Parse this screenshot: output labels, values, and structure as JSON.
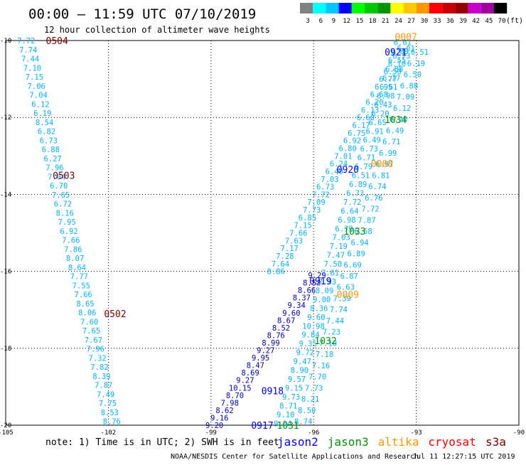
{
  "header": {
    "title": "00:00 – 11:59 UTC 07/10/2019",
    "subtitle": "12 hour collection of altimeter wave heights"
  },
  "legend": {
    "unit": "(ft)",
    "bins": [
      {
        "label": "3",
        "color": "#808080"
      },
      {
        "label": "6",
        "color": "#00ffff"
      },
      {
        "label": "9",
        "color": "#00c8ff"
      },
      {
        "label": "12",
        "color": "#0000ff"
      },
      {
        "label": "15",
        "color": "#00ff00"
      },
      {
        "label": "18",
        "color": "#00c800"
      },
      {
        "label": "21",
        "color": "#009600"
      },
      {
        "label": "24",
        "color": "#ffff00"
      },
      {
        "label": "27",
        "color": "#ffc800"
      },
      {
        "label": "30",
        "color": "#ff9600"
      },
      {
        "label": "33",
        "color": "#ff0000"
      },
      {
        "label": "36",
        "color": "#c80000"
      },
      {
        "label": "39",
        "color": "#960000"
      },
      {
        "label": "42",
        "color": "#c800c8"
      },
      {
        "label": "45",
        "color": "#a000a0"
      },
      {
        "label": "70",
        "color": "#000000"
      }
    ]
  },
  "map": {
    "lon_range": [
      -105,
      -90
    ],
    "lat_range": [
      -20,
      -10
    ],
    "lon_ticks": [
      "-105",
      "-102",
      "-99",
      "-96",
      "-93",
      "-90"
    ],
    "lat_ticks": [
      "-10",
      "-12",
      "-14",
      "-16",
      "-18",
      "-20"
    ]
  },
  "labels": [
    {
      "text": "0504",
      "lon": -103.5,
      "lat": -10.0,
      "color": "#800000"
    },
    {
      "text": "0503",
      "lon": -103.3,
      "lat": -13.5,
      "color": "#800000"
    },
    {
      "text": "0502",
      "lon": -101.8,
      "lat": -17.1,
      "color": "#800000"
    },
    {
      "text": "0007",
      "lon": -93.3,
      "lat": -9.9,
      "color": "#ff9600"
    },
    {
      "text": "0921",
      "lon": -93.6,
      "lat": -10.3,
      "color": "#0000ff"
    },
    {
      "text": "1034",
      "lon": -93.6,
      "lat": -12.05,
      "color": "#009600"
    },
    {
      "text": "0008",
      "lon": -94.0,
      "lat": -13.2,
      "color": "#ff9600"
    },
    {
      "text": "0920",
      "lon": -95.0,
      "lat": -13.35,
      "color": "#0000ff"
    },
    {
      "text": "1033",
      "lon": -94.8,
      "lat": -14.95,
      "color": "#009600"
    },
    {
      "text": "0919",
      "lon": -95.8,
      "lat": -16.25,
      "color": "#0000ff"
    },
    {
      "text": "0009",
      "lon": -95.0,
      "lat": -16.6,
      "color": "#ff9600"
    },
    {
      "text": "1032",
      "lon": -95.65,
      "lat": -17.8,
      "color": "#009600"
    },
    {
      "text": "0918",
      "lon": -97.2,
      "lat": -19.1,
      "color": "#0000ff"
    },
    {
      "text": "0917",
      "lon": -97.5,
      "lat": -20.0,
      "color": "#0000ff"
    },
    {
      "text": "1031",
      "lon": -96.75,
      "lat": -20.0,
      "color": "#009600"
    }
  ],
  "tracks": [
    {
      "name": "left-track",
      "color": "#00b4ff",
      "start": {
        "lon": -104.4,
        "lat": -10.0
      },
      "end": {
        "lon": -101.9,
        "lat": -19.9
      },
      "values": [
        "7.72",
        "7.74",
        "7.44",
        "7.10",
        "7.15",
        "7.06",
        "7.04",
        "6.12",
        "6.19",
        "8.54",
        "6.82",
        "6.73",
        "6.88",
        "6.27",
        "7.96",
        "7.04",
        "6.70",
        "7.65",
        "6.72",
        "8.16",
        "7.95",
        "6.92",
        "7.66",
        "7.86",
        "8.07",
        "8.64",
        "7.77",
        "7.55",
        "7.66",
        "8.65",
        "8.06",
        "7.60",
        "7.65",
        "7.67",
        "7.96",
        "7.32",
        "7.82",
        "8.39",
        "7.87",
        "7.49",
        "7.75",
        "8.53",
        "8.76"
      ]
    },
    {
      "name": "center-track",
      "color": "#0000c8",
      "start": {
        "lon": -98.9,
        "lat": -20.0
      },
      "end": {
        "lon": -95.9,
        "lat": -16.1
      },
      "values": [
        "9.20",
        "9.16",
        "8.62",
        "7.98",
        "8.70",
        "10.15",
        "9.27",
        "8.69",
        "8.47",
        "9.95",
        "9.27",
        "8.99",
        "8.76",
        "8.52",
        "8.67",
        "9.60",
        "9.34",
        "8.37",
        "8.66",
        "8.53",
        "9.29"
      ]
    },
    {
      "name": "right-track-a",
      "color": "#00b4ff",
      "start": {
        "lon": -96.9,
        "lat": -19.95
      },
      "end": {
        "lon": -93.4,
        "lat": -10.05
      },
      "values": [
        "9.04",
        "9.10",
        "8.71",
        "9.73",
        "9.15",
        "9.57",
        "8.90",
        "9.47",
        "9.72",
        "9.35",
        "9.84",
        "10.98",
        "9.60",
        "8.36",
        "9.00",
        "8.09",
        "7.93",
        "7.61",
        "7.50",
        "7.47",
        "7.19",
        "7.03",
        "6.79",
        "6.98",
        "6.64",
        "7.72",
        "6.73",
        "6.89",
        "6.51",
        "6.79",
        "6.71",
        "6.73",
        "6.49",
        "6.91",
        "6.65",
        "6.20",
        "6.43",
        "6.98",
        "6.61",
        "6.77",
        "6.88",
        "6.55",
        "6.89",
        "6.61"
      ]
    },
    {
      "name": "right-track-b",
      "color": "#00b4ff",
      "start": {
        "lon": -96.3,
        "lat": -19.9
      },
      "end": {
        "lon": -92.9,
        "lat": -10.3
      },
      "values": [
        "8.74",
        "8.50",
        "8.21",
        "7.73",
        "7.70",
        "7.16",
        "7.18",
        "7.10",
        "7.23",
        "7.44",
        "7.74",
        "7.39",
        "6.63",
        "6.87",
        "6.69",
        "6.89",
        "6.94",
        "6.68",
        "7.87",
        "7.72",
        "6.76",
        "6.74",
        "6.81",
        "6.97",
        "6.99",
        "6.71",
        "6.49",
        "6.20",
        "6.12",
        "7.09",
        "6.88",
        "6.50",
        "6.19",
        "6.51"
      ]
    },
    {
      "name": "right-track-c",
      "color": "#00b4ff",
      "start": {
        "lon": -97.1,
        "lat": -16.0
      },
      "end": {
        "lon": -93.3,
        "lat": -10.2
      },
      "values": [
        "8.86",
        "7.64",
        "7.28",
        "7.17",
        "7.63",
        "7.66",
        "7.15",
        "6.85",
        "7.73",
        "7.09",
        "7.72",
        "6.73",
        "7.03",
        "6.40",
        "6.24",
        "7.01",
        "6.80",
        "6.92",
        "6.75",
        "6.17",
        "6.60",
        "6.13",
        "6.20",
        "6.68",
        "6.95",
        "6.77",
        "6.50",
        "6.10",
        "6.73",
        "6.01"
      ]
    }
  ],
  "footer": {
    "note": "note: 1) Time is in UTC; 2) SWH is in feet",
    "sources": [
      {
        "name": "jason2",
        "color": "#0000ff"
      },
      {
        "name": "jason3",
        "color": "#009600"
      },
      {
        "name": "altika",
        "color": "#ff9600"
      },
      {
        "name": "cryosat",
        "color": "#ff0000"
      },
      {
        "name": "s3a",
        "color": "#800000"
      }
    ],
    "credit": "NOAA/NESDIS Center for Satellite Applications and Research",
    "timestamp": "Jul 11 12:27:15 UTC 2019"
  }
}
